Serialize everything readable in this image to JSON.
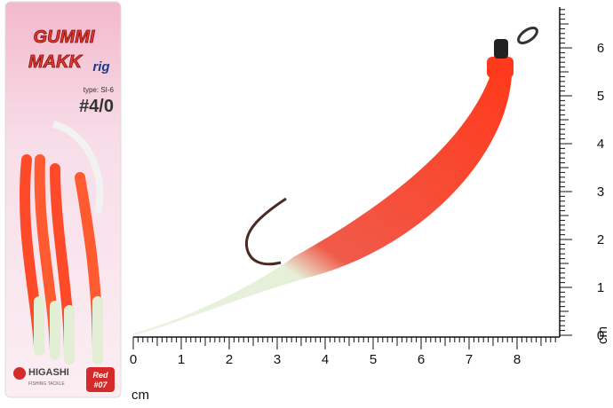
{
  "package": {
    "brand_line1": "GUMMI",
    "brand_line2": "MAKK",
    "brand_suffix": "rig",
    "type_label": "type: SI-6",
    "size": "#4/0",
    "maker": "HIGASHI",
    "maker_tagline": "FISHING TACKLE",
    "color_line1": "Red",
    "color_line2": "#07"
  },
  "ruler_horizontal": {
    "labels": [
      0,
      1,
      2,
      3,
      4,
      5,
      6,
      7,
      8
    ],
    "unit": "cm"
  },
  "ruler_vertical": {
    "labels": [
      0,
      1,
      2,
      3,
      4,
      5,
      6
    ],
    "unit": "cm"
  }
}
